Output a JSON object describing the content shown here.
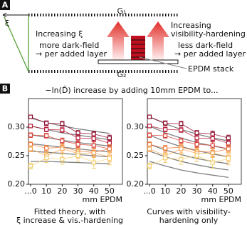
{
  "panel_a": {
    "label": "A",
    "g1": "G₁",
    "g2": "G₂",
    "xi": "ξ",
    "left_text": [
      "Increasing ξ",
      "more dark-field",
      "→ per added layer"
    ],
    "right_text": [
      "Increasing",
      "visibility-hardening",
      "less dark-field",
      "→ per added layer"
    ],
    "stack_label": "EPDM stack"
  },
  "panel_b": {
    "label": "B",
    "title": "−ln(D̄) increase by adding 10mm EPDM to..."
  },
  "chart_data": [
    {
      "type": "line",
      "categories": [
        "...0",
        "10",
        "20",
        "30",
        "40",
        "50"
      ],
      "xlabel": "mm EPDM",
      "caption": [
        "Fitted theory, with",
        "ξ increase & vis.-hardening"
      ],
      "ylim": [
        0.2,
        0.35
      ],
      "yticks": [
        {
          "value": 0.2,
          "label": "0.20"
        },
        {
          "value": 0.25,
          "label": "0.25"
        },
        {
          "value": 0.3,
          "label": "0.30"
        }
      ],
      "series": [
        {
          "color": "#8b0a2a",
          "values": [
            0.318,
            0.307,
            0.306,
            0.29,
            0.288,
            0.281
          ],
          "errors": [
            0.003,
            0.004,
            0.004,
            0.004,
            0.005,
            0.005
          ]
        },
        {
          "color": "#b51f3a",
          "values": [
            0.302,
            0.296,
            0.295,
            0.281,
            0.28,
            0.272
          ],
          "errors": [
            0.003,
            0.004,
            0.004,
            0.005,
            0.005,
            0.005
          ]
        },
        {
          "color": "#d8443a",
          "values": [
            0.286,
            0.285,
            0.276,
            0.27,
            0.268,
            0.262
          ],
          "errors": [
            0.004,
            0.004,
            0.005,
            0.005,
            0.006,
            0.006
          ]
        },
        {
          "color": "#ee7c3c",
          "values": [
            0.27,
            0.263,
            0.265,
            0.258,
            0.256,
            0.262
          ],
          "errors": [
            0.004,
            0.005,
            0.006,
            0.006,
            0.007,
            0.007
          ]
        },
        {
          "color": "#f5a95a",
          "values": [
            0.262,
            0.25,
            0.262,
            0.254,
            0.255,
            0.248
          ],
          "errors": [
            0.005,
            0.006,
            0.007,
            0.008,
            0.008,
            0.009
          ]
        },
        {
          "color": "#f6d070",
          "values": [
            0.232,
            0.246,
            0.244,
            0.25,
            0.238,
            0.245
          ],
          "errors": [
            0.005,
            0.008,
            0.009,
            0.01,
            0.01,
            0.011
          ]
        }
      ],
      "fits": [
        {
          "color": "#808080",
          "values": [
            0.316,
            0.308,
            0.302,
            0.297,
            0.293,
            0.289
          ]
        },
        {
          "color": "#808080",
          "values": [
            0.302,
            0.296,
            0.29,
            0.286,
            0.282,
            0.278
          ]
        },
        {
          "color": "#808080",
          "values": [
            0.287,
            0.282,
            0.277,
            0.273,
            0.27,
            0.267
          ]
        },
        {
          "color": "#808080",
          "values": [
            0.271,
            0.268,
            0.265,
            0.262,
            0.259,
            0.257
          ]
        },
        {
          "color": "#808080",
          "values": [
            0.258,
            0.256,
            0.254,
            0.252,
            0.25,
            0.248
          ]
        },
        {
          "color": "#808080",
          "values": [
            0.24,
            0.24,
            0.239,
            0.238,
            0.237,
            0.236
          ]
        }
      ]
    },
    {
      "type": "line",
      "categories": [
        "...0",
        "10",
        "20",
        "30",
        "40",
        "50"
      ],
      "xlabel": "mm EPDM",
      "caption": [
        "Curves with visibility-",
        "hardening only"
      ],
      "ylim": [
        0.2,
        0.35
      ],
      "yticks": [
        {
          "value": 0.2,
          "label": "0.20"
        },
        {
          "value": 0.25,
          "label": "0.25"
        },
        {
          "value": 0.3,
          "label": "0.30"
        }
      ],
      "series": [
        {
          "color": "#8b0a2a",
          "values": [
            0.318,
            0.307,
            0.306,
            0.29,
            0.288,
            0.281
          ],
          "errors": [
            0.003,
            0.004,
            0.004,
            0.004,
            0.005,
            0.005
          ]
        },
        {
          "color": "#b51f3a",
          "values": [
            0.302,
            0.296,
            0.295,
            0.281,
            0.28,
            0.272
          ],
          "errors": [
            0.003,
            0.004,
            0.004,
            0.005,
            0.005,
            0.005
          ]
        },
        {
          "color": "#d8443a",
          "values": [
            0.286,
            0.285,
            0.276,
            0.27,
            0.268,
            0.262
          ],
          "errors": [
            0.004,
            0.004,
            0.005,
            0.005,
            0.006,
            0.006
          ]
        },
        {
          "color": "#ee7c3c",
          "values": [
            0.27,
            0.263,
            0.265,
            0.258,
            0.256,
            0.262
          ],
          "errors": [
            0.004,
            0.005,
            0.006,
            0.006,
            0.007,
            0.007
          ]
        },
        {
          "color": "#f5a95a",
          "values": [
            0.262,
            0.25,
            0.262,
            0.254,
            0.255,
            0.248
          ],
          "errors": [
            0.005,
            0.006,
            0.007,
            0.008,
            0.008,
            0.009
          ]
        },
        {
          "color": "#f6d070",
          "values": [
            0.232,
            0.246,
            0.244,
            0.25,
            0.238,
            0.245
          ],
          "errors": [
            0.005,
            0.008,
            0.009,
            0.01,
            0.01,
            0.011
          ]
        }
      ],
      "fits": [
        {
          "color": "#808080",
          "values": [
            0.318,
            0.306,
            0.296,
            0.288,
            0.281,
            0.276
          ]
        },
        {
          "color": "#808080",
          "values": [
            0.302,
            0.29,
            0.281,
            0.273,
            0.267,
            0.262
          ]
        },
        {
          "color": "#808080",
          "values": [
            0.286,
            0.275,
            0.266,
            0.259,
            0.253,
            0.248
          ]
        },
        {
          "color": "#808080",
          "values": [
            0.27,
            0.26,
            0.252,
            0.245,
            0.24,
            0.236
          ]
        },
        {
          "color": "#808080",
          "values": [
            0.258,
            0.248,
            0.24,
            0.234,
            0.229,
            0.225
          ]
        },
        {
          "color": "#808080",
          "values": [
            0.24,
            0.232,
            0.225,
            0.22,
            0.216,
            0.212
          ]
        }
      ]
    }
  ]
}
